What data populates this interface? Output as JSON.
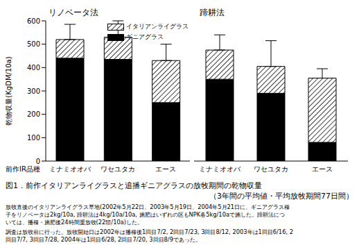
{
  "chart_data": [
    {
      "type": "bar",
      "title": "リノベータ法",
      "ylabel": "乾物収量(KgDM/10a)",
      "xlabel": "前作IR品種",
      "categories": [
        "ミナミオオバ",
        "ワセユタカ",
        "エース"
      ],
      "stacked": true,
      "series": [
        {
          "name": "ギニアグラス",
          "color": "#000000",
          "values": [
            440,
            435,
            250
          ]
        },
        {
          "name": "イタリアンライグラス",
          "color": "#000000",
          "values": [
            80,
            95,
            180
          ],
          "errors": [
            65,
            70,
            70
          ]
        }
      ],
      "ylim": [
        0,
        600
      ],
      "yticks": [
        0,
        100,
        200,
        300,
        400,
        500,
        600
      ],
      "legend": "upper right"
    },
    {
      "type": "bar",
      "title": "蹄耕法",
      "categories": [
        "ミナミオオバ",
        "ワセユタカ",
        "エース"
      ],
      "stacked": true,
      "series": [
        {
          "name": "ギニアグラス",
          "color": "#000000",
          "values": [
            350,
            290,
            80
          ]
        },
        {
          "name": "イタリアンライグラス",
          "color": "#000000",
          "values": [
            125,
            115,
            275
          ],
          "errors": [
            65,
            110,
            40
          ]
        }
      ],
      "ylim": [
        0,
        600
      ],
      "yticks": [
        0,
        100,
        200,
        300,
        400,
        500,
        600
      ],
      "tick_labels": "x"
    }
  ],
  "figure_title": "図1．前作イタリアンライグラスと追播ギニアグラスの放牧期間の乾物収量",
  "figure_subtitle": "（3年間の平均値・平均放牧期間77日間）",
  "notes": [
    "放牧直後のイタリアンライグラス草地(2002年5月22日、2003年5月19日、2004年5月21日に、ギニアグラス種",
    "子をリノベータは2kg/10a, 蹄耕法は4kg/10a/10a, 施肥はいずれの区もNPK各5kg/10aで施した。蹄耕法につ",
    "いては、播種・施肥後24時間重放牧(22頭/10a)した。",
    "調査は放牧前に行った。放牧開始日は2002年は播種後1回目7/2, 2回目7/23, 3回目8/12, 2003年は1回目6/16, 2",
    "回目7/7, 3回目7/28, 2004年は1回目6/28, 2回目7/20, 3回目8/9であった。"
  ]
}
